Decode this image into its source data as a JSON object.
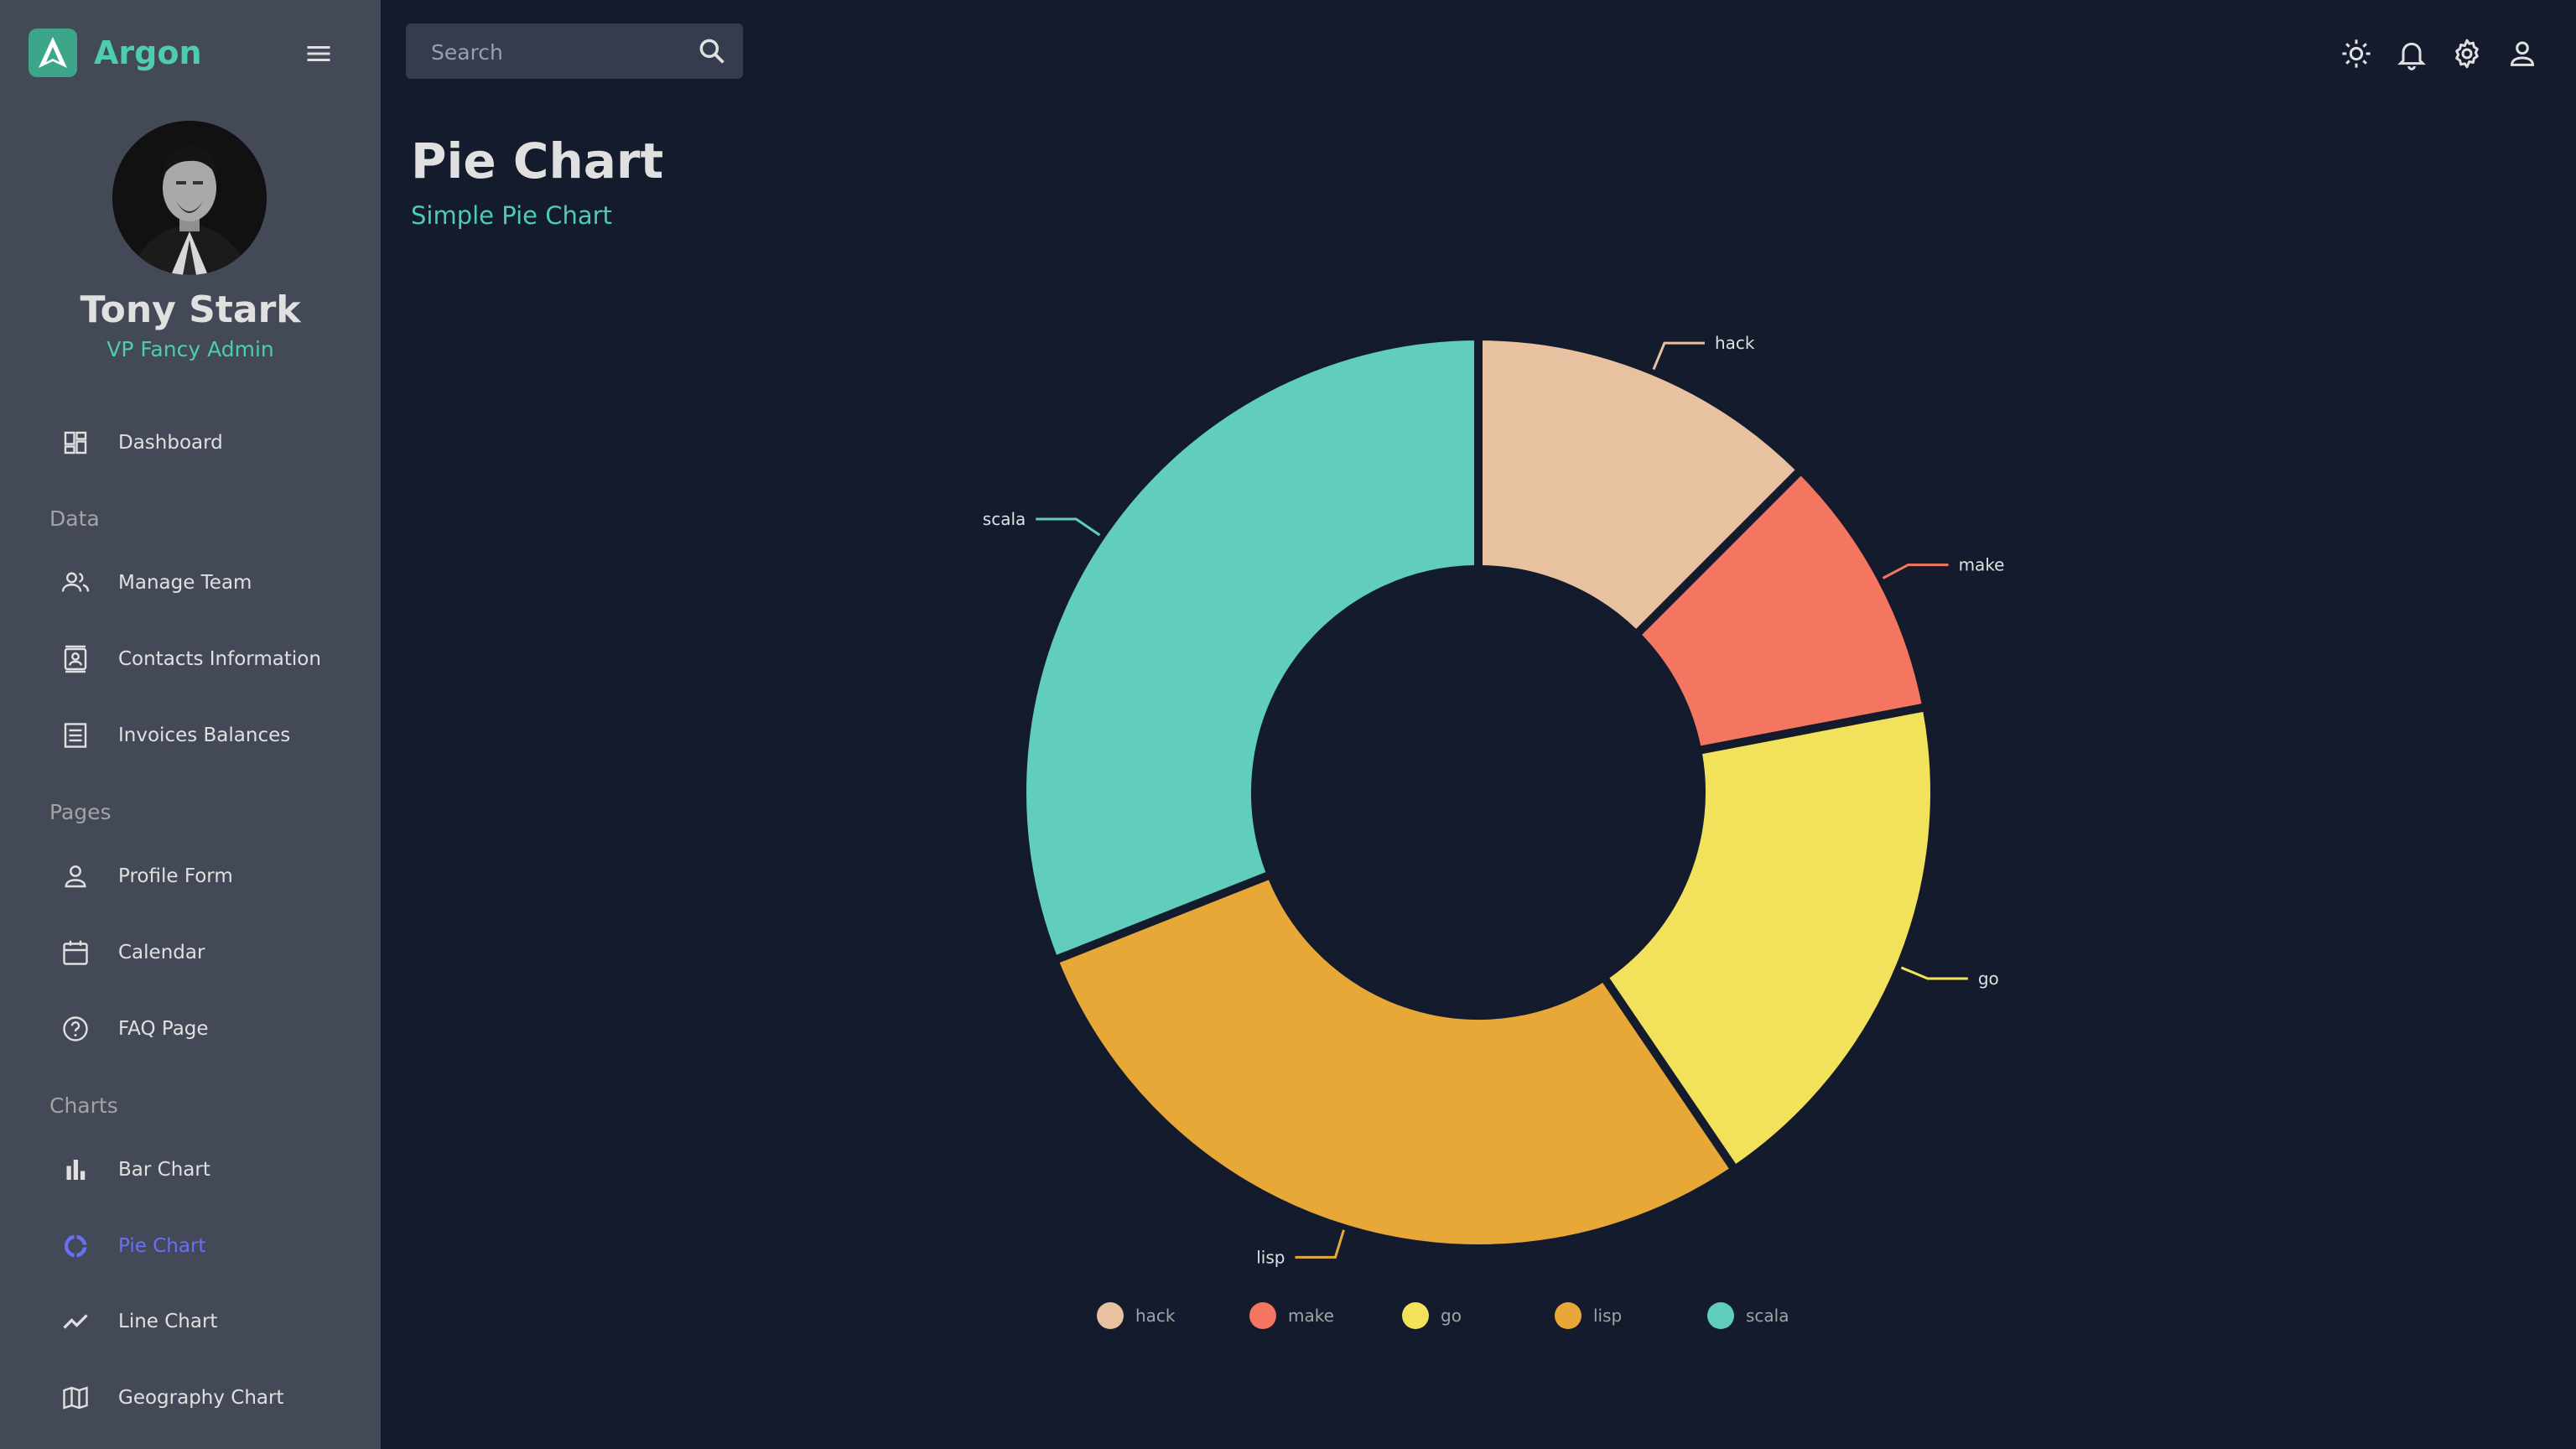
{
  "app": {
    "name": "Argon"
  },
  "user": {
    "name": "Tony Stark",
    "role": "VP Fancy Admin"
  },
  "sidebar": {
    "items": [
      {
        "label": "Dashboard",
        "icon": "dashboard-icon"
      },
      {
        "section": "Data"
      },
      {
        "label": "Manage Team",
        "icon": "people-icon"
      },
      {
        "label": "Contacts Information",
        "icon": "contacts-icon"
      },
      {
        "label": "Invoices Balances",
        "icon": "receipt-icon"
      },
      {
        "section": "Pages"
      },
      {
        "label": "Profile Form",
        "icon": "person-icon"
      },
      {
        "label": "Calendar",
        "icon": "calendar-icon"
      },
      {
        "label": "FAQ Page",
        "icon": "help-icon"
      },
      {
        "section": "Charts"
      },
      {
        "label": "Bar Chart",
        "icon": "bar-chart-icon"
      },
      {
        "label": "Pie Chart",
        "icon": "pie-chart-icon",
        "active": true
      },
      {
        "label": "Line Chart",
        "icon": "line-chart-icon"
      },
      {
        "label": "Geography Chart",
        "icon": "map-icon"
      }
    ]
  },
  "search": {
    "placeholder": "Search"
  },
  "topbar": {
    "icons": [
      "light-mode-icon",
      "notifications-icon",
      "settings-icon",
      "account-icon"
    ]
  },
  "header": {
    "title": "Pie Chart",
    "subtitle": "Simple Pie Chart"
  },
  "colors": {
    "background": "#141b2d",
    "sidebar": "#434957",
    "accent": "#4cceac",
    "active": "#6870fa"
  },
  "chart_data": {
    "type": "pie",
    "inner_radius_ratio": 0.5,
    "categories": [
      "hack",
      "make",
      "go",
      "lisp",
      "scala"
    ],
    "values": [
      12.5,
      9.5,
      18.5,
      28.5,
      31.0
    ],
    "colors": [
      "#e8c1a0",
      "#f47560",
      "#f1e15b",
      "#e8a838",
      "#61cdbb"
    ],
    "legend": {
      "position": "bottom",
      "entries": [
        "hack",
        "make",
        "go",
        "lisp",
        "scala"
      ]
    },
    "title": ""
  }
}
